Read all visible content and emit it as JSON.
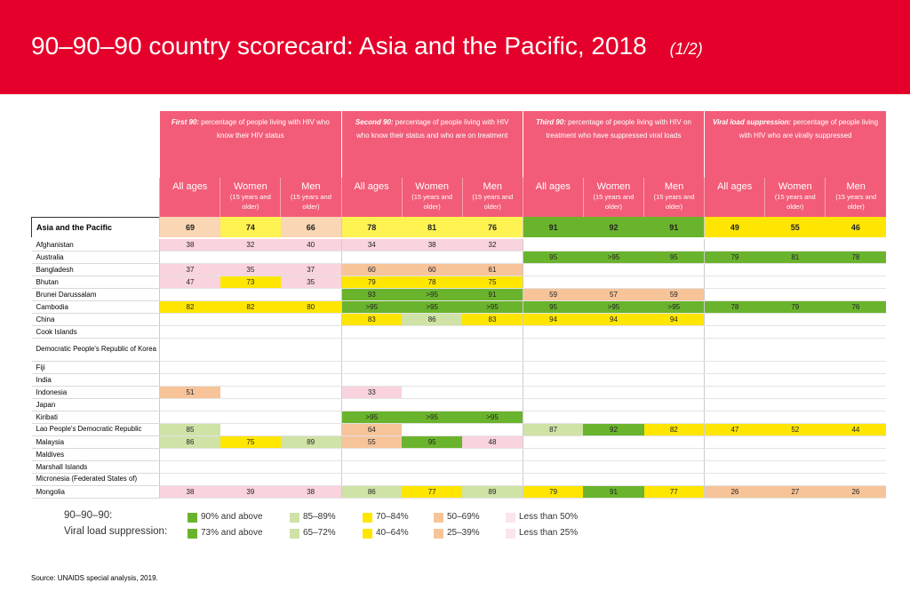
{
  "header": {
    "title": "90–90–90 country scorecard: Asia and the Pacific, 2018",
    "subtitle": "(1/2)"
  },
  "groups": [
    {
      "bold": "First 90:",
      "text": " percentage of people living with HIV who know their HIV status"
    },
    {
      "bold": "Second 90:",
      "text": "  percentage of people living with HIV who know their status and who are on treatment"
    },
    {
      "bold": "Third 90:",
      "text": " percentage of people living with HIV on treatment who have suppressed viral loads"
    },
    {
      "bold": "Viral load suppression:",
      "text": " percentage of people living with HIV who are virally suppressed"
    }
  ],
  "subcols": {
    "all": "All ages",
    "women": "Women",
    "men": "Men",
    "note": "(15 years and older)"
  },
  "colors": {
    "g1": "#6ab42d",
    "g2": "#9ccf5a",
    "lg1": "#cfe3a6",
    "lg2": "#e2efc9",
    "y1": "#ffe600",
    "y2": "#fff352",
    "o1": "#f7c49a",
    "o2": "#fad6b4",
    "p1": "#f9d3dd",
    "p2": "#fce4ea"
  },
  "region": {
    "name": "Asia and the Pacific",
    "cells": [
      [
        "69",
        "o2"
      ],
      [
        "74",
        "y2"
      ],
      [
        "66",
        "o2"
      ],
      [
        "78",
        "y2"
      ],
      [
        "81",
        "y2"
      ],
      [
        "76",
        "y2"
      ],
      [
        "91",
        "g1"
      ],
      [
        "92",
        "g1"
      ],
      [
        "91",
        "g1"
      ],
      [
        "49",
        "y1"
      ],
      [
        "55",
        "y1"
      ],
      [
        "46",
        "y1"
      ]
    ]
  },
  "rows": [
    {
      "name": "Afghanistan",
      "cells": [
        [
          "38",
          "p1"
        ],
        [
          "32",
          "p1"
        ],
        [
          "40",
          "p1"
        ],
        [
          "34",
          "p1"
        ],
        [
          "38",
          "p1"
        ],
        [
          "32",
          "p1"
        ],
        [
          "",
          ""
        ],
        [
          "",
          ""
        ],
        [
          "",
          ""
        ],
        [
          "",
          ""
        ],
        [
          "",
          ""
        ],
        [
          "",
          ""
        ]
      ]
    },
    {
      "name": "Australia",
      "cells": [
        [
          "",
          ""
        ],
        [
          "",
          ""
        ],
        [
          "",
          ""
        ],
        [
          "",
          ""
        ],
        [
          "",
          ""
        ],
        [
          "",
          ""
        ],
        [
          "95",
          "g1"
        ],
        [
          ">95",
          "g1"
        ],
        [
          "95",
          "g1"
        ],
        [
          "79",
          "g1"
        ],
        [
          "81",
          "g1"
        ],
        [
          "78",
          "g1"
        ]
      ]
    },
    {
      "name": "Bangladesh",
      "cells": [
        [
          "37",
          "p1"
        ],
        [
          "35",
          "p1"
        ],
        [
          "37",
          "p1"
        ],
        [
          "60",
          "o1"
        ],
        [
          "60",
          "o1"
        ],
        [
          "61",
          "o1"
        ],
        [
          "",
          ""
        ],
        [
          "",
          ""
        ],
        [
          "",
          ""
        ],
        [
          "",
          ""
        ],
        [
          "",
          ""
        ],
        [
          "",
          ""
        ]
      ]
    },
    {
      "name": "Bhutan",
      "cells": [
        [
          "47",
          "p1"
        ],
        [
          "73",
          "y1"
        ],
        [
          "35",
          "p1"
        ],
        [
          "79",
          "y1"
        ],
        [
          "78",
          "y1"
        ],
        [
          "75",
          "y1"
        ],
        [
          "",
          ""
        ],
        [
          "",
          ""
        ],
        [
          "",
          ""
        ],
        [
          "",
          ""
        ],
        [
          "",
          ""
        ],
        [
          "",
          ""
        ]
      ]
    },
    {
      "name": "Brunei Darussalam",
      "cells": [
        [
          "",
          ""
        ],
        [
          "",
          ""
        ],
        [
          "",
          ""
        ],
        [
          "93",
          "g1"
        ],
        [
          ">95",
          "g1"
        ],
        [
          "91",
          "g1"
        ],
        [
          "59",
          "o1"
        ],
        [
          "57",
          "o1"
        ],
        [
          "59",
          "o1"
        ],
        [
          "",
          ""
        ],
        [
          "",
          ""
        ],
        [
          "",
          ""
        ]
      ]
    },
    {
      "name": "Cambodia",
      "cells": [
        [
          "82",
          "y1"
        ],
        [
          "82",
          "y1"
        ],
        [
          "80",
          "y1"
        ],
        [
          ">95",
          "g1"
        ],
        [
          ">95",
          "g1"
        ],
        [
          ">95",
          "g1"
        ],
        [
          "95",
          "g1"
        ],
        [
          ">95",
          "g1"
        ],
        [
          ">95",
          "g1"
        ],
        [
          "78",
          "g1"
        ],
        [
          "79",
          "g1"
        ],
        [
          "76",
          "g1"
        ]
      ]
    },
    {
      "name": "China",
      "cells": [
        [
          "",
          ""
        ],
        [
          "",
          ""
        ],
        [
          "",
          ""
        ],
        [
          "83",
          "y1"
        ],
        [
          "86",
          "lg1"
        ],
        [
          "83",
          "y1"
        ],
        [
          "94",
          "y1"
        ],
        [
          "94",
          "y1"
        ],
        [
          "94",
          "y1"
        ],
        [
          "",
          ""
        ],
        [
          "",
          ""
        ],
        [
          "",
          ""
        ]
      ]
    },
    {
      "name": "Cook Islands",
      "cells": [
        [
          "",
          ""
        ],
        [
          "",
          ""
        ],
        [
          "",
          ""
        ],
        [
          "",
          ""
        ],
        [
          "",
          ""
        ],
        [
          "",
          ""
        ],
        [
          "",
          ""
        ],
        [
          "",
          ""
        ],
        [
          "",
          ""
        ],
        [
          "",
          ""
        ],
        [
          "",
          ""
        ],
        [
          "",
          ""
        ]
      ]
    },
    {
      "name": "Democratic People's Republic of Korea",
      "small": true,
      "tall": true,
      "cells": [
        [
          "",
          ""
        ],
        [
          "",
          ""
        ],
        [
          "",
          ""
        ],
        [
          "",
          ""
        ],
        [
          "",
          ""
        ],
        [
          "",
          ""
        ],
        [
          "",
          ""
        ],
        [
          "",
          ""
        ],
        [
          "",
          ""
        ],
        [
          "",
          ""
        ],
        [
          "",
          ""
        ],
        [
          "",
          ""
        ]
      ]
    },
    {
      "name": "Fiji",
      "cells": [
        [
          "",
          ""
        ],
        [
          "",
          ""
        ],
        [
          "",
          ""
        ],
        [
          "",
          ""
        ],
        [
          "",
          ""
        ],
        [
          "",
          ""
        ],
        [
          "",
          ""
        ],
        [
          "",
          ""
        ],
        [
          "",
          ""
        ],
        [
          "",
          ""
        ],
        [
          "",
          ""
        ],
        [
          "",
          ""
        ]
      ]
    },
    {
      "name": "India",
      "cells": [
        [
          "",
          ""
        ],
        [
          "",
          ""
        ],
        [
          "",
          ""
        ],
        [
          "",
          ""
        ],
        [
          "",
          ""
        ],
        [
          "",
          ""
        ],
        [
          "",
          ""
        ],
        [
          "",
          ""
        ],
        [
          "",
          ""
        ],
        [
          "",
          ""
        ],
        [
          "",
          ""
        ],
        [
          "",
          ""
        ]
      ]
    },
    {
      "name": "Indonesia",
      "cells": [
        [
          "51",
          "o1"
        ],
        [
          "",
          ""
        ],
        [
          "",
          ""
        ],
        [
          "33",
          "p1"
        ],
        [
          "",
          ""
        ],
        [
          "",
          ""
        ],
        [
          "",
          ""
        ],
        [
          "",
          ""
        ],
        [
          "",
          ""
        ],
        [
          "",
          ""
        ],
        [
          "",
          ""
        ],
        [
          "",
          ""
        ]
      ]
    },
    {
      "name": "Japan",
      "cells": [
        [
          "",
          ""
        ],
        [
          "",
          ""
        ],
        [
          "",
          ""
        ],
        [
          "",
          ""
        ],
        [
          "",
          ""
        ],
        [
          "",
          ""
        ],
        [
          "",
          ""
        ],
        [
          "",
          ""
        ],
        [
          "",
          ""
        ],
        [
          "",
          ""
        ],
        [
          "",
          ""
        ],
        [
          "",
          ""
        ]
      ]
    },
    {
      "name": "Kiribati",
      "cells": [
        [
          "",
          ""
        ],
        [
          "",
          ""
        ],
        [
          "",
          ""
        ],
        [
          ">95",
          "g1"
        ],
        [
          ">95",
          "g1"
        ],
        [
          ">95",
          "g1"
        ],
        [
          "",
          ""
        ],
        [
          "",
          ""
        ],
        [
          "",
          ""
        ],
        [
          "",
          ""
        ],
        [
          "",
          ""
        ],
        [
          "",
          ""
        ]
      ]
    },
    {
      "name": "Lao People's Democratic Republic",
      "small": true,
      "cells": [
        [
          "85",
          "lg1"
        ],
        [
          "",
          ""
        ],
        [
          "",
          ""
        ],
        [
          "64",
          "o1"
        ],
        [
          "",
          ""
        ],
        [
          "",
          ""
        ],
        [
          "87",
          "lg1"
        ],
        [
          "92",
          "g1"
        ],
        [
          "82",
          "y1"
        ],
        [
          "47",
          "y1"
        ],
        [
          "52",
          "y1"
        ],
        [
          "44",
          "y1"
        ]
      ]
    },
    {
      "name": "Malaysia",
      "cells": [
        [
          "86",
          "lg1"
        ],
        [
          "75",
          "y1"
        ],
        [
          "89",
          "lg1"
        ],
        [
          "55",
          "o1"
        ],
        [
          "95",
          "g1"
        ],
        [
          "48",
          "p1"
        ],
        [
          "",
          ""
        ],
        [
          "",
          ""
        ],
        [
          "",
          ""
        ],
        [
          "",
          ""
        ],
        [
          "",
          ""
        ],
        [
          "",
          ""
        ]
      ]
    },
    {
      "name": "Maldives",
      "cells": [
        [
          "",
          ""
        ],
        [
          "",
          ""
        ],
        [
          "",
          ""
        ],
        [
          "",
          ""
        ],
        [
          "",
          ""
        ],
        [
          "",
          ""
        ],
        [
          "",
          ""
        ],
        [
          "",
          ""
        ],
        [
          "",
          ""
        ],
        [
          "",
          ""
        ],
        [
          "",
          ""
        ],
        [
          "",
          ""
        ]
      ]
    },
    {
      "name": "Marshall Islands",
      "cells": [
        [
          "",
          ""
        ],
        [
          "",
          ""
        ],
        [
          "",
          ""
        ],
        [
          "",
          ""
        ],
        [
          "",
          ""
        ],
        [
          "",
          ""
        ],
        [
          "",
          ""
        ],
        [
          "",
          ""
        ],
        [
          "",
          ""
        ],
        [
          "",
          ""
        ],
        [
          "",
          ""
        ],
        [
          "",
          ""
        ]
      ]
    },
    {
      "name": "Micronesia (Federated States of)",
      "small": true,
      "cells": [
        [
          "",
          ""
        ],
        [
          "",
          ""
        ],
        [
          "",
          ""
        ],
        [
          "",
          ""
        ],
        [
          "",
          ""
        ],
        [
          "",
          ""
        ],
        [
          "",
          ""
        ],
        [
          "",
          ""
        ],
        [
          "",
          ""
        ],
        [
          "",
          ""
        ],
        [
          "",
          ""
        ],
        [
          "",
          ""
        ]
      ]
    },
    {
      "name": "Mongolia",
      "cells": [
        [
          "38",
          "p1"
        ],
        [
          "39",
          "p1"
        ],
        [
          "38",
          "p1"
        ],
        [
          "86",
          "lg1"
        ],
        [
          "77",
          "y1"
        ],
        [
          "89",
          "lg1"
        ],
        [
          "79",
          "y1"
        ],
        [
          "91",
          "g1"
        ],
        [
          "77",
          "y1"
        ],
        [
          "26",
          "o1"
        ],
        [
          "27",
          "o1"
        ],
        [
          "26",
          "o1"
        ]
      ]
    }
  ],
  "legend": {
    "label1": "90–90–90:",
    "label2": "Viral load suppression:",
    "row1": [
      [
        "90% and above",
        "g1"
      ],
      [
        "85–89%",
        "lg1"
      ],
      [
        "70–84%",
        "y1"
      ],
      [
        "50–69%",
        "o1"
      ],
      [
        "Less than 50%",
        "p2"
      ]
    ],
    "row2": [
      [
        "73% and above",
        "g1"
      ],
      [
        "65–72%",
        "lg1"
      ],
      [
        "40–64%",
        "y1"
      ],
      [
        "25–39%",
        "o1"
      ],
      [
        "Less than 25%",
        "p2"
      ]
    ]
  },
  "source": "Source: UNAIDS special analysis, 2019."
}
